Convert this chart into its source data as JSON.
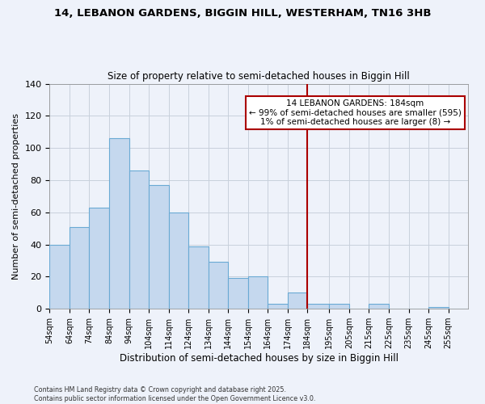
{
  "title1": "14, LEBANON GARDENS, BIGGIN HILL, WESTERHAM, TN16 3HB",
  "title2": "Size of property relative to semi-detached houses in Biggin Hill",
  "xlabel": "Distribution of semi-detached houses by size in Biggin Hill",
  "ylabel": "Number of semi-detached properties",
  "bin_labels": [
    "54sqm",
    "64sqm",
    "74sqm",
    "84sqm",
    "94sqm",
    "104sqm",
    "114sqm",
    "124sqm",
    "134sqm",
    "144sqm",
    "154sqm",
    "164sqm",
    "174sqm",
    "184sqm",
    "195sqm",
    "205sqm",
    "215sqm",
    "225sqm",
    "235sqm",
    "245sqm",
    "255sqm"
  ],
  "bin_lefts": [
    54,
    64,
    74,
    84,
    94,
    104,
    114,
    124,
    134,
    144,
    154,
    164,
    174,
    184,
    195,
    205,
    215,
    225,
    235,
    245,
    255
  ],
  "bin_widths": [
    10,
    10,
    10,
    10,
    10,
    10,
    10,
    10,
    10,
    10,
    10,
    10,
    10,
    11,
    10,
    10,
    10,
    10,
    10,
    10,
    10
  ],
  "bar_heights": [
    40,
    51,
    63,
    106,
    86,
    77,
    60,
    39,
    29,
    19,
    20,
    3,
    10,
    3,
    3,
    0,
    3,
    0,
    0,
    1,
    0
  ],
  "bar_color": "#c5d8ee",
  "bar_edge_color": "#6aaad4",
  "grid_color": "#c8d0dc",
  "vline_x": 184,
  "vline_color": "#aa0000",
  "annotation_title": "14 LEBANON GARDENS: 184sqm",
  "annotation_line1": "← 99% of semi-detached houses are smaller (595)",
  "annotation_line2": "1% of semi-detached houses are larger (8) →",
  "annotation_box_color": "#ffffff",
  "annotation_box_edge": "#aa0000",
  "footer1": "Contains HM Land Registry data © Crown copyright and database right 2025.",
  "footer2": "Contains public sector information licensed under the Open Government Licence v3.0.",
  "ylim": [
    0,
    140
  ],
  "yticks": [
    0,
    20,
    40,
    60,
    80,
    100,
    120,
    140
  ],
  "bg_color": "#eef2fa",
  "plot_bg_color": "#eef2fa"
}
